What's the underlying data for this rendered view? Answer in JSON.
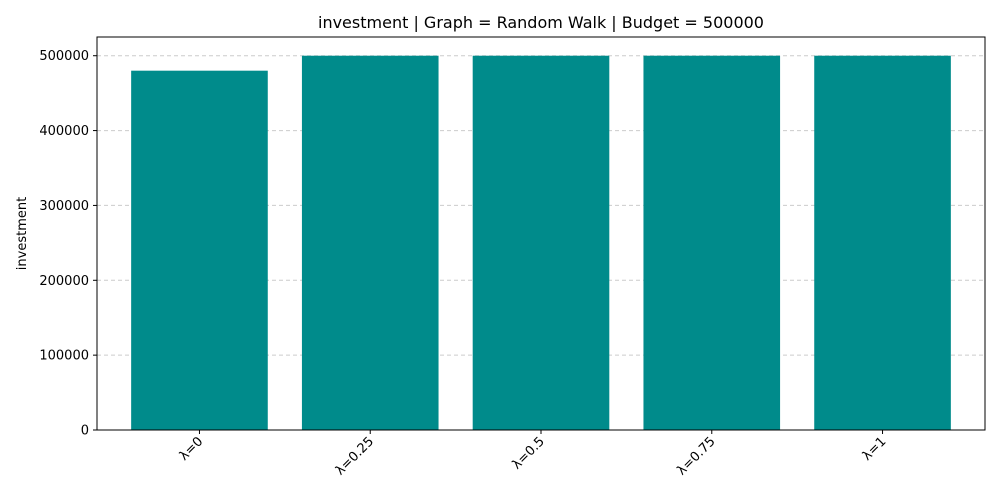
{
  "chart_data": {
    "type": "bar",
    "title": "investment | Graph = Random Walk | Budget = 500000",
    "xlabel": "",
    "ylabel": "investment",
    "categories": [
      "λ=0",
      "λ=0.25",
      "λ=0.5",
      "λ=0.75",
      "λ=1"
    ],
    "values": [
      480000,
      500000,
      500000,
      500000,
      500000
    ],
    "ylim": [
      0,
      525000
    ],
    "yticks": [
      0,
      100000,
      200000,
      300000,
      400000,
      500000
    ],
    "ytick_labels": [
      "0",
      "100000",
      "200000",
      "300000",
      "400000",
      "500000"
    ],
    "grid": "y-dashed",
    "bar_color": "#008b8b",
    "grid_color": "#cccccc"
  }
}
